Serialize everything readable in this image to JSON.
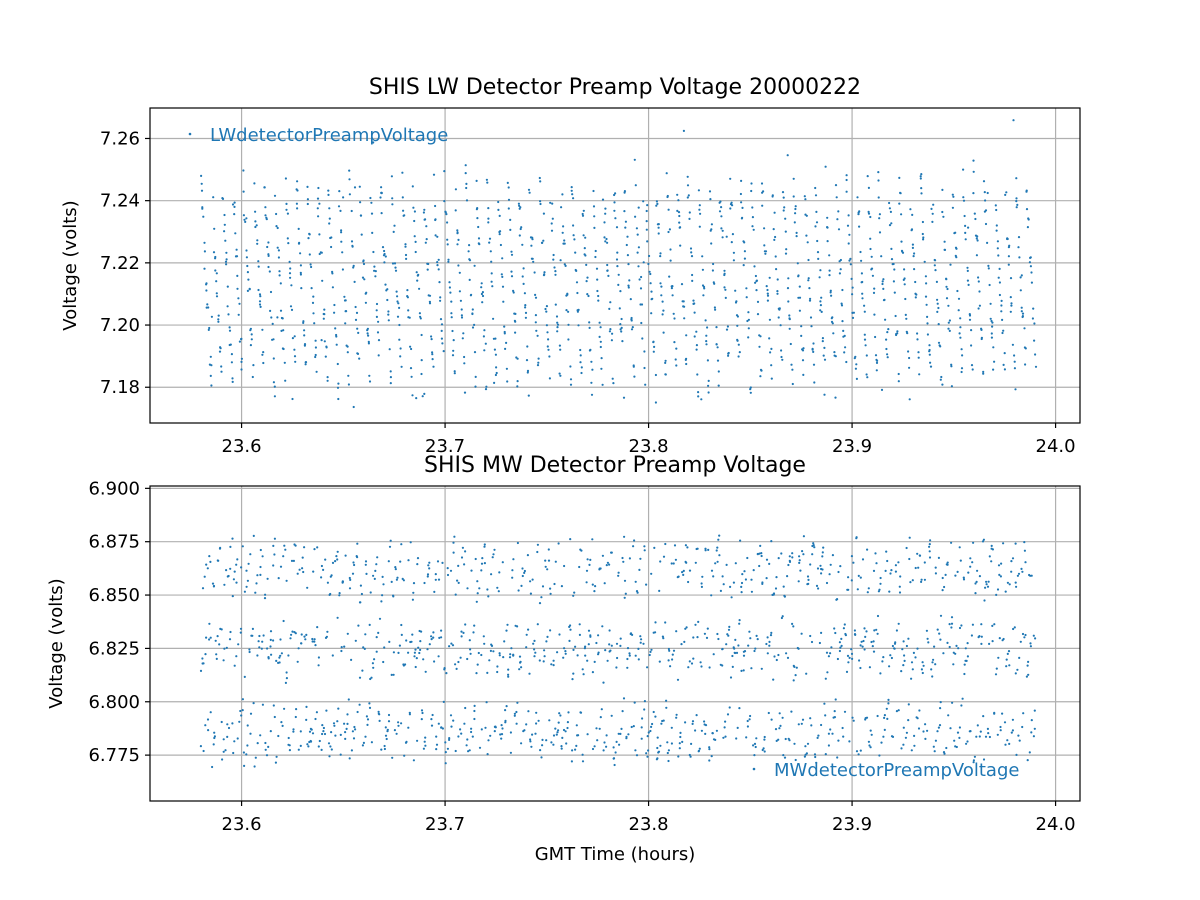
{
  "chart_data": [
    {
      "type": "scatter",
      "title": "SHIS LW Detector Preamp Voltage 20000222",
      "xlabel": "",
      "ylabel": "Voltage (volts)",
      "xlim": [
        23.555,
        24.012
      ],
      "ylim": [
        7.1685,
        7.2698
      ],
      "xticks": [
        23.6,
        23.7,
        23.8,
        23.9,
        24.0
      ],
      "xtick_labels": [
        "23.6",
        "23.7",
        "23.8",
        "23.9",
        "24.0"
      ],
      "yticks": [
        7.18,
        7.2,
        7.22,
        7.24,
        7.26
      ],
      "ytick_labels": [
        "7.18",
        "7.20",
        "7.22",
        "7.24",
        "7.26"
      ],
      "grid": true,
      "legend_position": "upper-left",
      "color": "#1f77b4",
      "series": [
        {
          "name": "LWdetectorPreampVoltage",
          "x_range": [
            23.58,
            23.99
          ],
          "y_range": [
            7.172,
            7.267
          ],
          "point_count": 1600,
          "description_values": {
            "typical_low": 7.18,
            "typical_high": 7.25,
            "cycle_hours": 0.005
          }
        }
      ]
    },
    {
      "type": "scatter",
      "title": "SHIS MW Detector Preamp Voltage",
      "xlabel": "GMT Time (hours)",
      "ylabel": "Voltage (volts)",
      "xlim": [
        23.555,
        24.012
      ],
      "ylim": [
        6.7535,
        6.9011
      ],
      "xticks": [
        23.6,
        23.7,
        23.8,
        23.9,
        24.0
      ],
      "xtick_labels": [
        "23.6",
        "23.7",
        "23.8",
        "23.9",
        "24.0"
      ],
      "yticks": [
        6.775,
        6.8,
        6.825,
        6.85,
        6.875,
        6.9
      ],
      "ytick_labels": [
        "6.775",
        "6.800",
        "6.825",
        "6.850",
        "6.875",
        "6.900"
      ],
      "grid": true,
      "legend_position": "lower-right",
      "color": "#1f77b4",
      "series": [
        {
          "name": "MWdetectorPreampVoltage",
          "x_range": [
            23.58,
            23.99
          ],
          "y_range": [
            6.757,
            6.894
          ],
          "point_count": 1600,
          "bands": [
            6.785,
            6.825,
            6.862
          ]
        }
      ]
    }
  ]
}
